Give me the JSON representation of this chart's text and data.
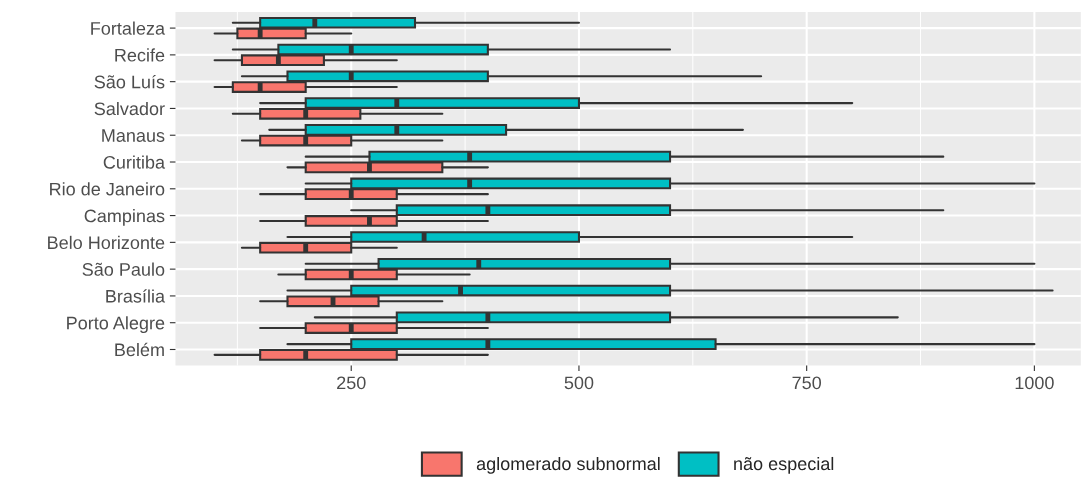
{
  "chart_data": {
    "type": "box",
    "orientation": "horizontal",
    "categories": [
      "Fortaleza",
      "Recife",
      "São Luís",
      "Salvador",
      "Manaus",
      "Curitiba",
      "Rio de Janeiro",
      "Campinas",
      "Belo Horizonte",
      "São Paulo",
      "Brasília",
      "Porto Alegre",
      "Belém"
    ],
    "series": [
      {
        "name": "aglomerado subnormal",
        "color": "#f8766d",
        "boxes": [
          {
            "low": 100,
            "q1": 125,
            "median": 150,
            "q3": 200,
            "high": 250
          },
          {
            "low": 100,
            "q1": 130,
            "median": 170,
            "q3": 220,
            "high": 300
          },
          {
            "low": 100,
            "q1": 120,
            "median": 150,
            "q3": 200,
            "high": 300
          },
          {
            "low": 120,
            "q1": 150,
            "median": 200,
            "q3": 260,
            "high": 350
          },
          {
            "low": 130,
            "q1": 150,
            "median": 200,
            "q3": 250,
            "high": 350
          },
          {
            "low": 180,
            "q1": 200,
            "median": 270,
            "q3": 350,
            "high": 400
          },
          {
            "low": 150,
            "q1": 200,
            "median": 250,
            "q3": 300,
            "high": 400
          },
          {
            "low": 150,
            "q1": 200,
            "median": 270,
            "q3": 300,
            "high": 400
          },
          {
            "low": 130,
            "q1": 150,
            "median": 200,
            "q3": 250,
            "high": 300
          },
          {
            "low": 170,
            "q1": 200,
            "median": 250,
            "q3": 300,
            "high": 380
          },
          {
            "low": 150,
            "q1": 180,
            "median": 230,
            "q3": 280,
            "high": 350
          },
          {
            "low": 150,
            "q1": 200,
            "median": 250,
            "q3": 300,
            "high": 400
          },
          {
            "low": 100,
            "q1": 150,
            "median": 200,
            "q3": 300,
            "high": 400
          }
        ]
      },
      {
        "name": "não especial",
        "color": "#00bfc4",
        "boxes": [
          {
            "low": 120,
            "q1": 150,
            "median": 210,
            "q3": 320,
            "high": 500
          },
          {
            "low": 120,
            "q1": 170,
            "median": 250,
            "q3": 400,
            "high": 600
          },
          {
            "low": 130,
            "q1": 180,
            "median": 250,
            "q3": 400,
            "high": 700
          },
          {
            "low": 150,
            "q1": 200,
            "median": 300,
            "q3": 500,
            "high": 800
          },
          {
            "low": 160,
            "q1": 200,
            "median": 300,
            "q3": 420,
            "high": 680
          },
          {
            "low": 200,
            "q1": 270,
            "median": 380,
            "q3": 600,
            "high": 900
          },
          {
            "low": 200,
            "q1": 250,
            "median": 380,
            "q3": 600,
            "high": 1000
          },
          {
            "low": 250,
            "q1": 300,
            "median": 400,
            "q3": 600,
            "high": 900
          },
          {
            "low": 180,
            "q1": 250,
            "median": 330,
            "q3": 500,
            "high": 800
          },
          {
            "low": 200,
            "q1": 280,
            "median": 390,
            "q3": 600,
            "high": 1000
          },
          {
            "low": 180,
            "q1": 250,
            "median": 370,
            "q3": 600,
            "high": 1020
          },
          {
            "low": 210,
            "q1": 300,
            "median": 400,
            "q3": 600,
            "high": 850
          },
          {
            "low": 180,
            "q1": 250,
            "median": 400,
            "q3": 650,
            "high": 1000
          }
        ]
      }
    ],
    "xlim": [
      57,
      1051
    ],
    "xticks": [
      250,
      500,
      750,
      1000
    ],
    "grid": true,
    "legend": "bottom"
  }
}
